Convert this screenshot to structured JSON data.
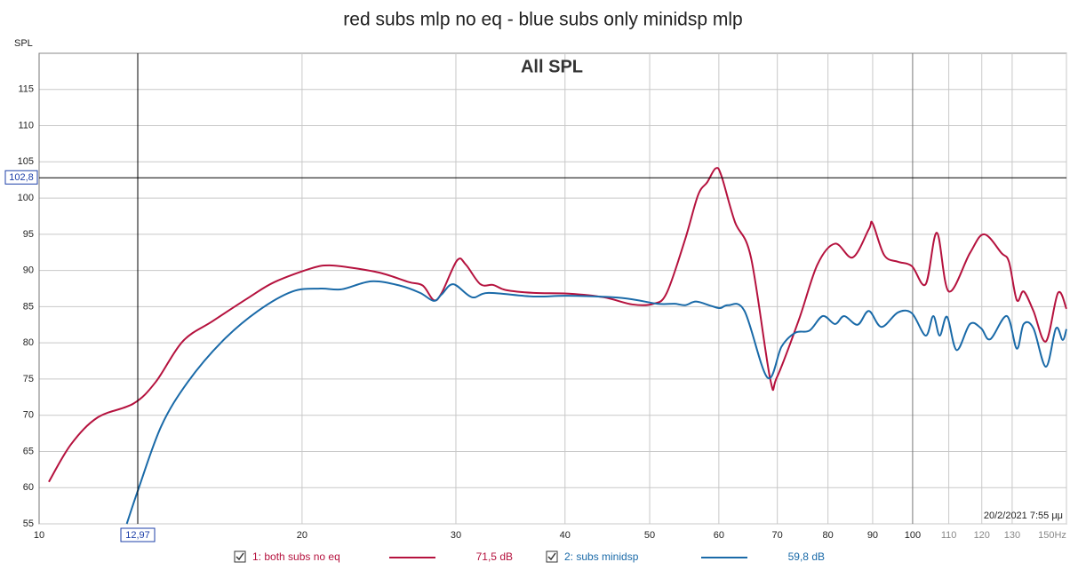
{
  "chart_data": {
    "type": "line",
    "title": "red subs mlp no eq - blue subs only minidsp mlp",
    "panel_title": "All SPL",
    "y_label": "SPL",
    "timestamp": "20/2/2021 7:55 μμ",
    "xscale": "log",
    "grid": true,
    "xlim": [
      10,
      150
    ],
    "ylim": [
      55,
      120
    ],
    "xticks": [
      10,
      20,
      30,
      40,
      50,
      60,
      70,
      80,
      90,
      100,
      110,
      120,
      130,
      {
        "value": 150,
        "label": "150Hz"
      }
    ],
    "yticks": [
      55,
      60,
      65,
      70,
      75,
      80,
      85,
      90,
      95,
      100,
      105,
      110,
      115
    ],
    "cursor": {
      "x": {
        "value": 12.97,
        "label": "12,97"
      },
      "y": {
        "value": 102.8,
        "label": "102,8"
      }
    },
    "series": [
      {
        "name": "1: both subs no eq",
        "color": "#b5123e",
        "legend_value": "71,5 dB",
        "x": [
          10.26,
          10.88,
          11.67,
          12.82,
          13.6,
          14.6,
          15.8,
          17.4,
          18.6,
          20.5,
          21.5,
          23.0,
          24.7,
          26.5,
          27.5,
          28.3,
          28.9,
          30.1,
          30.8,
          32.0,
          33.1,
          34.2,
          36.8,
          40.4,
          44.3,
          47.8,
          50.5,
          52.3,
          54.9,
          56.8,
          58.2,
          59.5,
          60.4,
          62.6,
          65.3,
          68.7,
          69.9,
          74.1,
          77.8,
          81.5,
          85.4,
          89.1,
          90.0,
          92.8,
          96.2,
          99.8,
          103.5,
          106.6,
          110.0,
          116.3,
          120.7,
          126.4,
          128.9,
          131.6,
          134.0,
          137.5,
          142.1,
          146.7,
          150
        ],
        "values": [
          60.8,
          66.0,
          69.7,
          71.6,
          74.6,
          80.2,
          83.0,
          86.3,
          88.4,
          90.3,
          90.7,
          90.3,
          89.6,
          88.4,
          87.9,
          85.9,
          86.9,
          91.4,
          90.8,
          88.1,
          88.0,
          87.3,
          86.9,
          86.8,
          86.3,
          85.3,
          85.4,
          86.9,
          94.3,
          100.4,
          102.2,
          104.1,
          103.1,
          96.7,
          91.8,
          75.0,
          75.2,
          83.2,
          90.8,
          93.7,
          91.8,
          95.7,
          96.5,
          92.1,
          91.2,
          90.6,
          88.1,
          95.2,
          87.1,
          92.4,
          95.0,
          92.4,
          91.2,
          85.9,
          87.1,
          84.4,
          80.2,
          86.9,
          84.7
        ]
      },
      {
        "name": "2: subs minidsp",
        "color": "#1a6aa8",
        "legend_value": "59,8 dB",
        "x": [
          12.6,
          13.0,
          13.8,
          14.8,
          16.2,
          17.8,
          19.5,
          21.0,
          22.2,
          24.0,
          25.9,
          27.3,
          28.3,
          28.9,
          29.8,
          31.3,
          32.7,
          36.8,
          40.4,
          46.5,
          51.0,
          53.4,
          54.9,
          56.5,
          58.8,
          60.2,
          61.5,
          64.2,
          68.2,
          70.8,
          73.4,
          76.2,
          78.9,
          81.5,
          83.5,
          86.5,
          89.1,
          92.1,
          96.2,
          99.8,
          103.5,
          105.6,
          107.4,
          109.5,
          112.3,
          116.3,
          119.8,
          122.7,
          128.2,
          131.6,
          134.0,
          137.5,
          142.1,
          145.9,
          148.5,
          150
        ],
        "values": [
          55,
          59.9,
          68.5,
          74.6,
          80.2,
          84.4,
          87.1,
          87.5,
          87.4,
          88.5,
          87.9,
          86.9,
          85.8,
          86.7,
          88.1,
          86.3,
          86.9,
          86.4,
          86.5,
          86.2,
          85.4,
          85.4,
          85.2,
          85.7,
          85.1,
          84.8,
          85.2,
          84.4,
          75.2,
          79.5,
          81.4,
          81.7,
          83.7,
          82.6,
          83.7,
          82.5,
          84.4,
          82.2,
          84.2,
          84.1,
          81.0,
          83.7,
          81.0,
          83.6,
          79.0,
          82.6,
          82.0,
          80.5,
          83.7,
          79.2,
          82.6,
          82.0,
          76.7,
          82.0,
          80.4,
          81.9
        ]
      }
    ]
  }
}
